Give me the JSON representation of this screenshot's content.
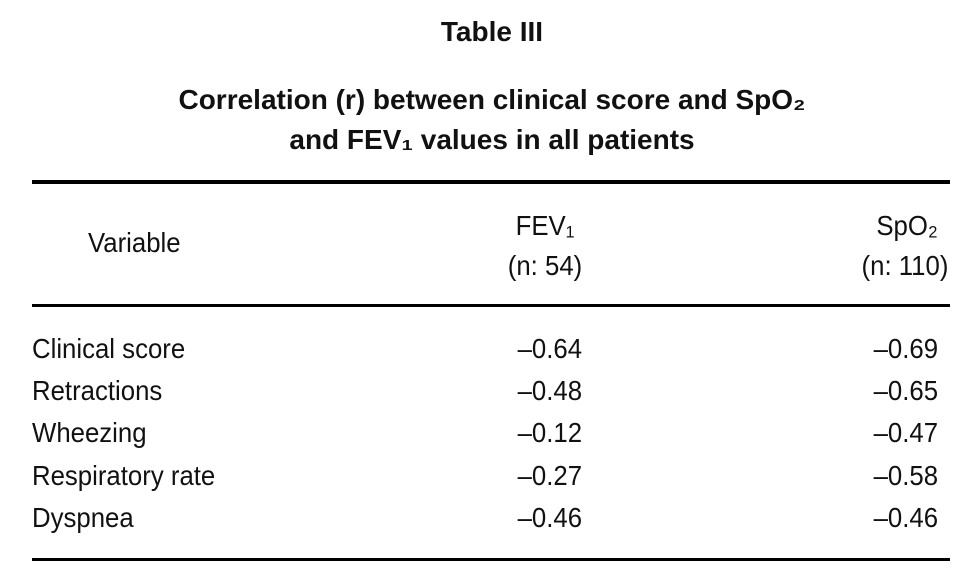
{
  "header": {
    "title": "Table III",
    "subtitle": [
      "Correlation (r) between clinical score and SpO₂",
      "and FEV₁ values in all patients"
    ]
  },
  "table": {
    "columns": [
      {
        "label": "Variable"
      },
      {
        "label": "FEV₁",
        "n": "(n: 54)"
      },
      {
        "label": "SpO₂",
        "n": "(n: 110)"
      }
    ],
    "rows": [
      [
        "Clinical score",
        "–0.64",
        "–0.69"
      ],
      [
        "Retractions",
        "–0.48",
        "–0.65"
      ],
      [
        "Wheezing",
        "–0.12",
        "–0.47"
      ],
      [
        "Respiratory rate",
        "–0.27",
        "–0.58"
      ],
      [
        "Dyspnea",
        "–0.46",
        "–0.46"
      ]
    ]
  }
}
